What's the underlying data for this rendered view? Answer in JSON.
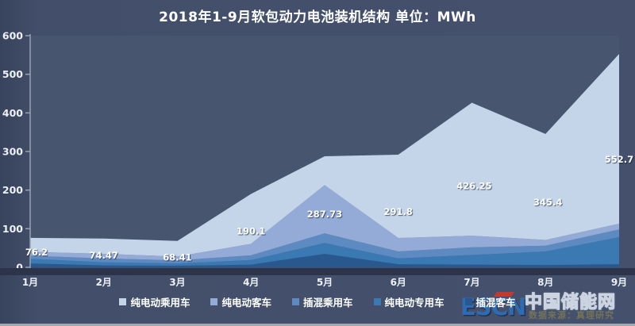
{
  "title": "2018年1-9月软包动力电池装机结构  单位：MWh",
  "chart_data": {
    "type": "area",
    "stacked": true,
    "unit": "MWh",
    "title": "2018年1-9月软包动力电池装机结构 单位：MWh",
    "categories": [
      "1月",
      "2月",
      "3月",
      "4月",
      "5月",
      "6月",
      "7月",
      "8月",
      "9月"
    ],
    "ylim": [
      0,
      600
    ],
    "yticks": [
      0,
      100,
      200,
      300,
      400,
      500,
      600
    ],
    "grid": false,
    "legend_position": "bottom",
    "totals": [
      76.2,
      74.47,
      68.41,
      190.1,
      287.73,
      291.8,
      426.25,
      345.4,
      552.7
    ],
    "total_labels": [
      "76.2",
      "74.47",
      "68.41",
      "190.1",
      "287.73",
      "291.8",
      "426.25",
      "345.4",
      "552.7"
    ],
    "series": [
      {
        "name": "纯电动乘用车",
        "color": "#c4d5ea",
        "values": [
          36.2,
          39.47,
          40.41,
          129.1,
          74.73,
          215.8,
          344.25,
          274.4,
          439.7
        ]
      },
      {
        "name": "纯电动客车",
        "color": "#93abd6",
        "values": [
          10,
          12,
          10,
          30,
          125,
          35,
          30,
          15,
          15
        ]
      },
      {
        "name": "插混乘用车",
        "color": "#5e8ac2",
        "values": [
          8,
          10,
          8,
          12,
          25,
          18,
          20,
          15,
          20
        ]
      },
      {
        "name": "纯电动专用车",
        "color": "#3b79b3",
        "values": [
          12,
          8,
          6,
          12,
          28,
          15,
          25,
          35,
          70
        ]
      },
      {
        "name": "插混客车",
        "color": "#28588e",
        "values": [
          10,
          5,
          4,
          7,
          35,
          8,
          7,
          6,
          8
        ]
      }
    ]
  },
  "watermark": {
    "source_text": "数据来源：真理研究"
  },
  "logo": {
    "escn": "ESCN",
    "site_name": "中国储能网"
  },
  "colors": {
    "background": "#434f6a",
    "axis": "#99a2b2",
    "axis_bar": "#2b3448",
    "label_text": "#ffffff",
    "escn_blue": "#2d6cb4",
    "accent_red": "#c2392f"
  }
}
